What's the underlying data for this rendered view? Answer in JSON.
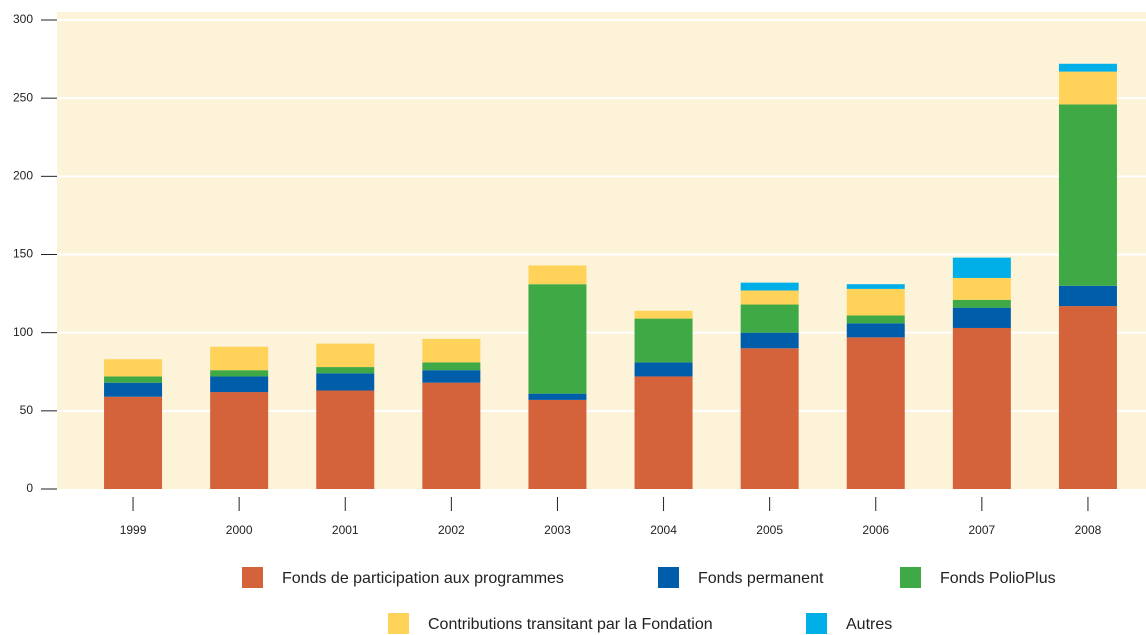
{
  "chart_data": {
    "type": "bar",
    "stacked": true,
    "categories": [
      "1999",
      "2000",
      "2001",
      "2002",
      "2003",
      "2004",
      "2005",
      "2006",
      "2007",
      "2008"
    ],
    "series": [
      {
        "name": "Fonds de participation aux programmes",
        "color": "#d4623a",
        "values": [
          59,
          62,
          63,
          68,
          57,
          72,
          90,
          97,
          103,
          117
        ]
      },
      {
        "name": "Fonds permanent",
        "color": "#005daa",
        "values": [
          9,
          10,
          11,
          8,
          4,
          9,
          10,
          9,
          13,
          13
        ]
      },
      {
        "name": "Fonds PolioPlus",
        "color": "#3fa946",
        "values": [
          4,
          4,
          4,
          5,
          70,
          28,
          18,
          5,
          5,
          116
        ]
      },
      {
        "name": "Contributions transitant par la Fondation",
        "color": "#ffd25a",
        "values": [
          11,
          15,
          15,
          15,
          12,
          5,
          9,
          17,
          14,
          21
        ]
      },
      {
        "name": "Autres",
        "color": "#00aee8",
        "values": [
          0,
          0,
          0,
          0,
          0,
          0,
          5,
          3,
          13,
          5
        ]
      }
    ],
    "ylim": [
      0,
      300
    ],
    "yticks": [
      0,
      50,
      100,
      150,
      200,
      250,
      300
    ],
    "grid": true
  }
}
